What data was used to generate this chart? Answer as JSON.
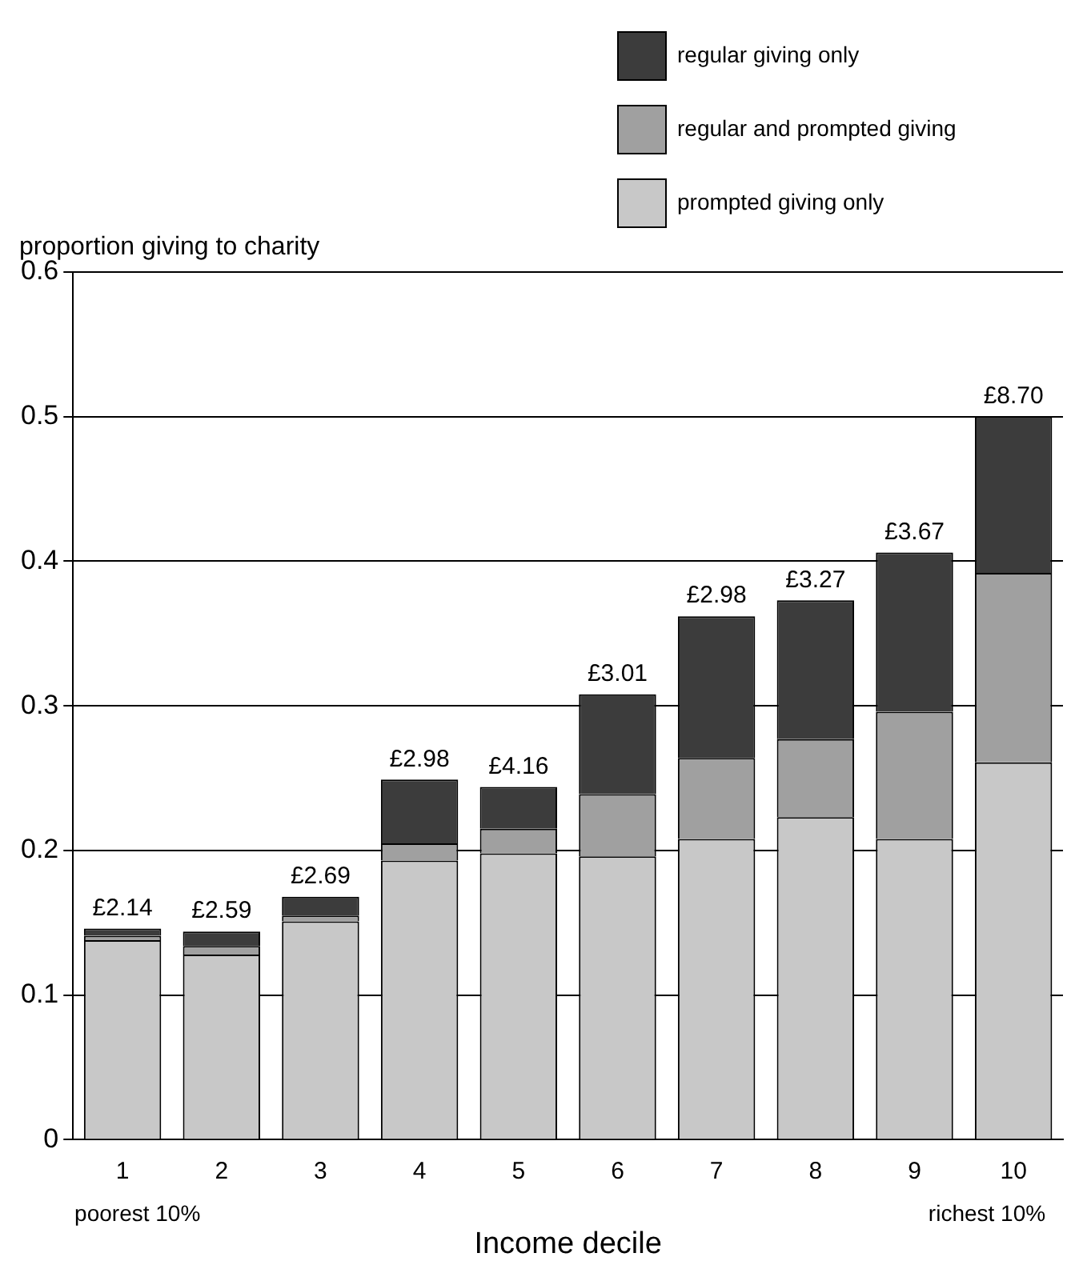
{
  "chart_data": {
    "type": "bar",
    "stacked": true,
    "ylabel": "proportion giving to charity",
    "xlabel": "Income decile",
    "categories": [
      "1",
      "2",
      "3",
      "4",
      "5",
      "6",
      "7",
      "8",
      "9",
      "10"
    ],
    "series": [
      {
        "name": "prompted giving only",
        "color": "#c8c8c8",
        "values": [
          0.138,
          0.128,
          0.151,
          0.193,
          0.198,
          0.196,
          0.208,
          0.223,
          0.208,
          0.261
        ]
      },
      {
        "name": "regular and prompted giving",
        "color": "#a0a0a0",
        "values": [
          0.003,
          0.006,
          0.004,
          0.012,
          0.017,
          0.043,
          0.056,
          0.054,
          0.088,
          0.131
        ]
      },
      {
        "name": "regular giving only",
        "color": "#3c3c3c",
        "values": [
          0.005,
          0.01,
          0.013,
          0.044,
          0.029,
          0.069,
          0.098,
          0.096,
          0.11,
          0.108
        ]
      }
    ],
    "ylim": [
      0,
      0.6
    ],
    "yticks": [
      0,
      0.1,
      0.2,
      0.3,
      0.4,
      0.5,
      0.6
    ],
    "grid": "y",
    "legend": "top right",
    "annotations": [
      {
        "text": "£2.14",
        "x": "1",
        "y": 0.146
      },
      {
        "text": "£2.59",
        "x": "2",
        "y": 0.144
      },
      {
        "text": "£2.69",
        "x": "3",
        "y": 0.168
      },
      {
        "text": "£2.98",
        "x": "4",
        "y": 0.249
      },
      {
        "text": "£4.16",
        "x": "5",
        "y": 0.244
      },
      {
        "text": "£3.01",
        "x": "6",
        "y": 0.308
      },
      {
        "text": "£2.98",
        "x": "7",
        "y": 0.362
      },
      {
        "text": "£3.27",
        "x": "8",
        "y": 0.373
      },
      {
        "text": "£3.67",
        "x": "9",
        "y": 0.406
      },
      {
        "text": "£8.70",
        "x": "10",
        "y": 0.5
      },
      "poorest 10%",
      "richest 10%"
    ]
  }
}
